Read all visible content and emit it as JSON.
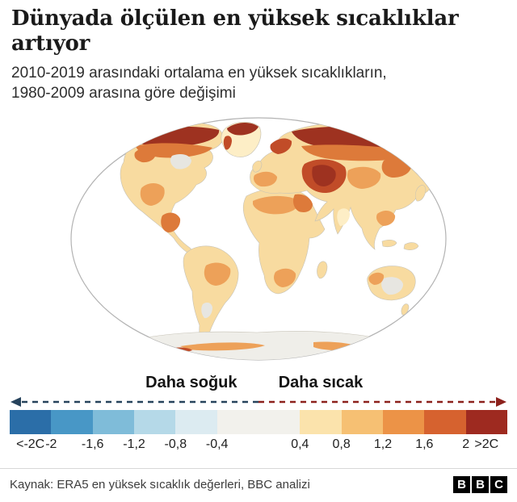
{
  "header": {
    "title": "Dünyada ölçülen en yüksek sıcaklıklar\nartıyor",
    "subtitle": "2010-2019 arasındaki ortalama en yüksek sıcaklıkların,\n1980-2009 arasına göre değişimi"
  },
  "palette": {
    "ocean": "#ffffff",
    "globe_border": "#b3b3b3",
    "coast": "#c6c2b6",
    "land_base": "#f8dba0",
    "land_pale": "#fdeec6",
    "land_gray": "#e7e6e1",
    "antarctica": "#efeee9",
    "hot_orange": "#eda159",
    "hot_deep": "#dd7a3a",
    "hot_red": "#c14c28",
    "hot_dark": "#9e3220",
    "cool_darkest": "#26435c",
    "warm_darkest": "#8c211c"
  },
  "chart_data": {
    "type": "heatmap",
    "title": "Dünyada ölçülen en yüksek sıcaklıklar artıyor",
    "subtitle": "2010-2019 arasındaki ortalama en yüksek sıcaklıkların, 1980-2009 arasına göre değişimi",
    "map_description": "Dünya haritası (oval projeksiyon); kuzey kutup bölgeleri, Sibirya, Grönland, Doğu Avrupa ve Orta Doğu en koyu kırmızı (en fazla ısınan) bölgeler",
    "unit": "C",
    "legend_position": "bottom",
    "cooler_label": "Daha soğuk",
    "warmer_label": "Daha sıcak",
    "colorbar": {
      "segments": [
        {
          "range": "<-2",
          "color": "#2b6ea8",
          "units": 1
        },
        {
          "range": "-2 / -1,6",
          "color": "#4897c6",
          "units": 1
        },
        {
          "range": "-1,6 / -1,2",
          "color": "#7fbcd9",
          "units": 1
        },
        {
          "range": "-1,2 / -0,8",
          "color": "#b5d9e8",
          "units": 1
        },
        {
          "range": "-0,8 / -0,4",
          "color": "#dcebf1",
          "units": 1
        },
        {
          "range": "-0,4 / 0,4",
          "color": "#f2f1ec",
          "units": 2
        },
        {
          "range": "0,4 / 0,8",
          "color": "#fbe3ac",
          "units": 1
        },
        {
          "range": "0,8 / 1,2",
          "color": "#f6c073",
          "units": 1
        },
        {
          "range": "1,2 / 1,6",
          "color": "#ec9347",
          "units": 1
        },
        {
          "range": "1,6 / 2",
          "color": "#d6622f",
          "units": 1
        },
        {
          "range": ">2",
          "color": "#9e2a20",
          "units": 1
        }
      ],
      "ticks": [
        {
          "label": "<-2C",
          "pos": 0.5
        },
        {
          "label": "-2",
          "pos": 1
        },
        {
          "label": "-1,6",
          "pos": 2
        },
        {
          "label": "-1,2",
          "pos": 3
        },
        {
          "label": "-0,8",
          "pos": 4
        },
        {
          "label": "-0,4",
          "pos": 5
        },
        {
          "label": "0,4",
          "pos": 7
        },
        {
          "label": "0,8",
          "pos": 8
        },
        {
          "label": "1,2",
          "pos": 9
        },
        {
          "label": "1,6",
          "pos": 10
        },
        {
          "label": "2",
          "pos": 11
        },
        {
          "label": ">2C",
          "pos": 11.5
        }
      ]
    }
  },
  "footer": {
    "source": "Kaynak: ERA5 en yüksek sıcaklık değerleri, BBC analizi",
    "logo": [
      "B",
      "B",
      "C"
    ]
  }
}
